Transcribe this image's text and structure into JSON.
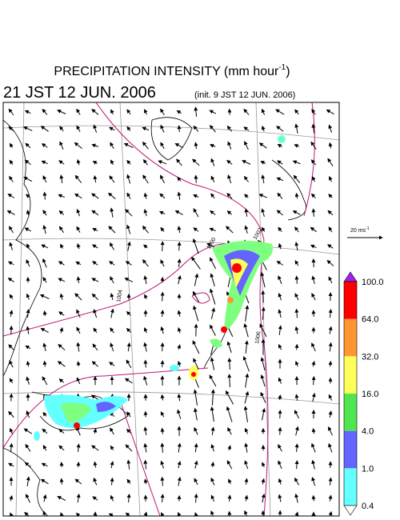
{
  "title": {
    "text": "PRECIPITATION INTENSITY (mm hour",
    "superscript": "-1",
    "close": ")"
  },
  "valid_time": "21 JST 12 JUN. 2006",
  "init_time": "(init. 9 JST 12 JUN. 2006)",
  "wind_reference": {
    "text": "20 ms",
    "superscript": "-1"
  },
  "isobar_labels": [
    "1002",
    "1004",
    "1006",
    "1000"
  ],
  "colorbar": {
    "labels": [
      "100.0",
      "64.0",
      "32.0",
      "16.0",
      "4.0",
      "1.0",
      "0.4"
    ]
  }
}
